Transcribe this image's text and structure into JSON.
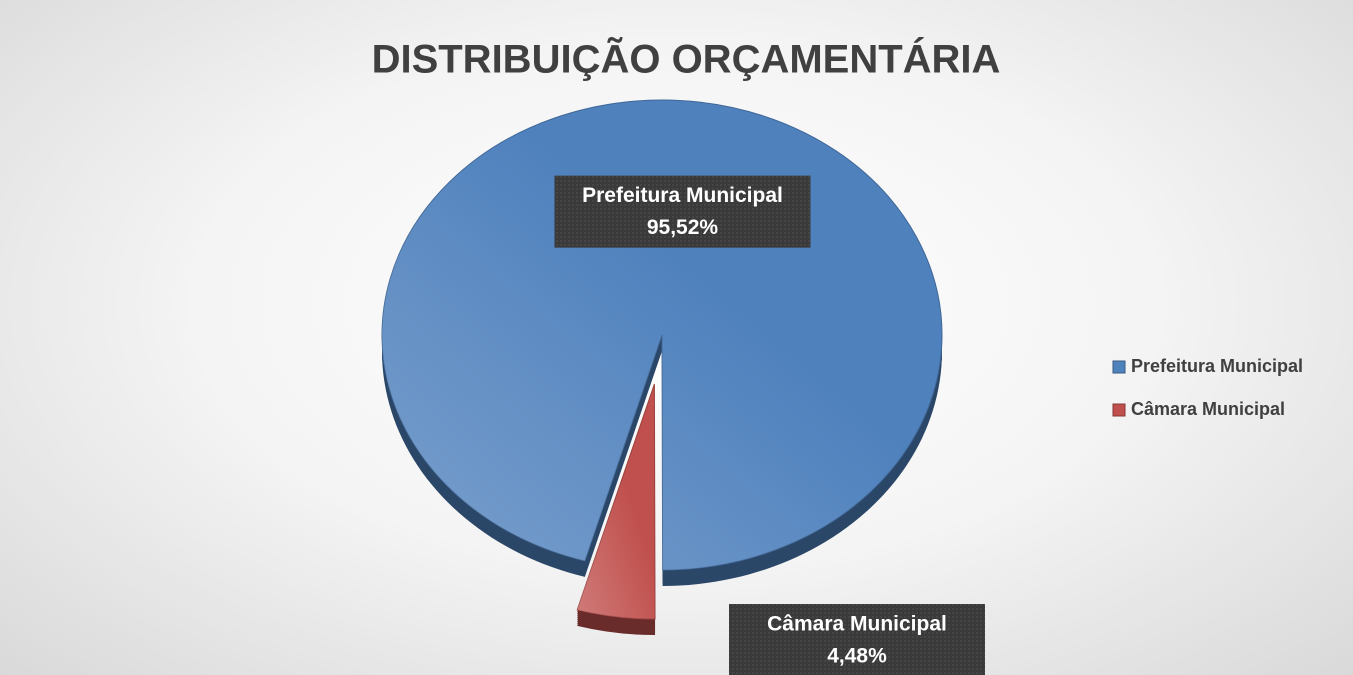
{
  "chart_data": {
    "type": "pie",
    "title": "DISTRIBUIÇÃO ORÇAMENTÁRIA",
    "categories": [
      "Prefeitura Municipal",
      "Câmara Municipal"
    ],
    "values": [
      95.52,
      4.48
    ],
    "value_labels": [
      "95,52%",
      "4,48%"
    ],
    "colors": [
      "#4f81bd",
      "#c0504d"
    ],
    "legend": "right"
  }
}
